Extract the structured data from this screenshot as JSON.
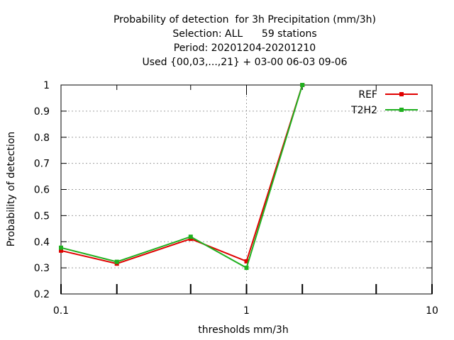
{
  "chart_data": {
    "type": "line",
    "title_lines": [
      "Probability of detection  for 3h Precipitation (mm/3h)",
      "Selection: ALL      59 stations",
      "Period: 20201204-20201210",
      "Used {00,03,...,21} + 03-00 06-03 09-06"
    ],
    "xlabel": "thresholds mm/3h",
    "ylabel": "Probability of detection",
    "x_scale": "log",
    "xlim": [
      0.1,
      10
    ],
    "ylim": [
      0.2,
      1
    ],
    "x_ticks": [
      0.1,
      1,
      10
    ],
    "x_tick_labels": [
      "0.1",
      "1",
      "10"
    ],
    "x_minor_ticks": [
      0.2,
      0.5,
      2,
      5
    ],
    "y_ticks": [
      0.2,
      0.3,
      0.4,
      0.5,
      0.6,
      0.7,
      0.8,
      0.9,
      1
    ],
    "y_tick_labels": [
      "0.2",
      "0.3",
      "0.4",
      "0.5",
      "0.6",
      "0.7",
      "0.8",
      "0.9",
      "1"
    ],
    "grid": true,
    "legend_position": "top-right",
    "series": [
      {
        "name": "REF",
        "color": "#e00000",
        "x": [
          0.1,
          0.2,
          0.5,
          1,
          2
        ],
        "y": [
          0.366,
          0.316,
          0.411,
          0.325,
          1.0
        ]
      },
      {
        "name": "T2H2",
        "color": "#1fb01f",
        "x": [
          0.1,
          0.2,
          0.5,
          1,
          2
        ],
        "y": [
          0.377,
          0.323,
          0.419,
          0.3,
          1.0
        ]
      }
    ]
  }
}
